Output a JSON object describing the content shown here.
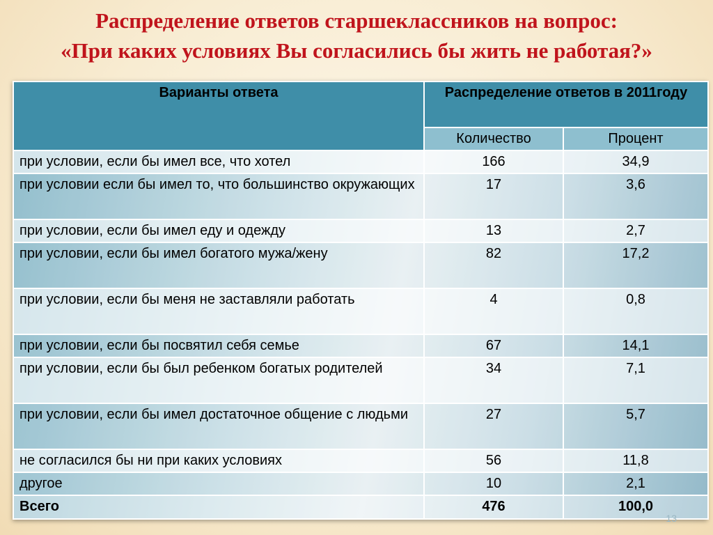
{
  "title": {
    "line1": "Распределение ответов старшеклассников на вопрос:",
    "line2": "«При каких условиях Вы согласились бы жить не работая?»"
  },
  "table": {
    "header": {
      "variants": "Варианты ответа",
      "distribution": "Распределение ответов в 2011году",
      "count": "Количество",
      "percent": "Процент"
    },
    "rows": [
      {
        "label": "при условии, если бы имел все, что хотел",
        "count": "166",
        "percent": "34,9"
      },
      {
        "label": "при условии если бы имел то, что большинство окружающих",
        "count": "17",
        "percent": "3,6"
      },
      {
        "label": "при условии, если бы имел еду и одежду",
        "count": "13",
        "percent": "2,7"
      },
      {
        "label": "при условии, если бы имел богатого мужа/жену",
        "count": "82",
        "percent": "17,2"
      },
      {
        "label": "при условии, если бы меня не заставляли работать",
        "count": "4",
        "percent": "0,8"
      },
      {
        "label": "при условии, если бы посвятил себя семье",
        "count": "67",
        "percent": "14,1"
      },
      {
        "label": "при условии, если бы был ребенком богатых родителей",
        "count": "34",
        "percent": "7,1"
      },
      {
        "label": "при условии, если бы имел достаточное общение с людьми",
        "count": "27",
        "percent": "5,7"
      },
      {
        "label": "не согласился бы ни при каких условиях",
        "count": "56",
        "percent": "11,8"
      },
      {
        "label": "другое",
        "count": "10",
        "percent": "2,1"
      }
    ],
    "total": {
      "label": "Всего",
      "count": "476",
      "percent": "100,0"
    }
  },
  "page_number": "13"
}
